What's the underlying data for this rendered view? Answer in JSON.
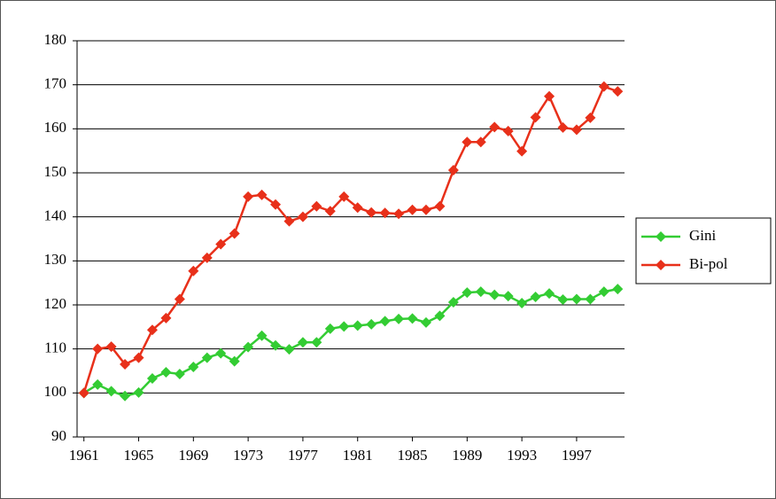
{
  "chart_data": {
    "type": "line",
    "x": [
      1961,
      1962,
      1963,
      1964,
      1965,
      1966,
      1967,
      1968,
      1969,
      1970,
      1971,
      1972,
      1973,
      1974,
      1975,
      1976,
      1977,
      1978,
      1979,
      1980,
      1981,
      1982,
      1983,
      1984,
      1985,
      1986,
      1987,
      1988,
      1989,
      1990,
      1991,
      1992,
      1993,
      1994,
      1995,
      1996,
      1997,
      1998,
      1999,
      2000
    ],
    "xlim": [
      1960.5,
      2000.5
    ],
    "xticks": [
      1961,
      1965,
      1969,
      1973,
      1977,
      1981,
      1985,
      1989,
      1993,
      1997
    ],
    "ylim": [
      90,
      180
    ],
    "yticks": [
      90,
      100,
      110,
      120,
      130,
      140,
      150,
      160,
      170,
      180
    ],
    "grid": true,
    "legend": "right",
    "series": [
      {
        "name": "Gini",
        "color": "#33cc33",
        "values": [
          100,
          101.9,
          100.4,
          99.3,
          100.1,
          103.3,
          104.7,
          104.3,
          105.9,
          108,
          109,
          107.2,
          110.4,
          113,
          110.8,
          109.9,
          111.5,
          111.5,
          114.6,
          115.1,
          115.3,
          115.6,
          116.3,
          116.8,
          116.9,
          116,
          117.5,
          120.6,
          122.8,
          123,
          122.3,
          122,
          120.4,
          121.8,
          122.6,
          121.2,
          121.3,
          121.3,
          123,
          123.6
        ]
      },
      {
        "name": "Bi-pol",
        "color": "#e8301a",
        "values": [
          100,
          110,
          110.5,
          106.5,
          108,
          114.3,
          117,
          121.3,
          127.7,
          130.7,
          133.8,
          136.2,
          144.6,
          145,
          142.8,
          139,
          140,
          142.4,
          141.3,
          144.6,
          142.1,
          141,
          140.9,
          140.7,
          141.6,
          141.6,
          142.4,
          150.6,
          157,
          157,
          160.4,
          159.5,
          154.9,
          162.6,
          167.4,
          160.3,
          159.8,
          162.5,
          169.6,
          168.5
        ]
      }
    ]
  }
}
